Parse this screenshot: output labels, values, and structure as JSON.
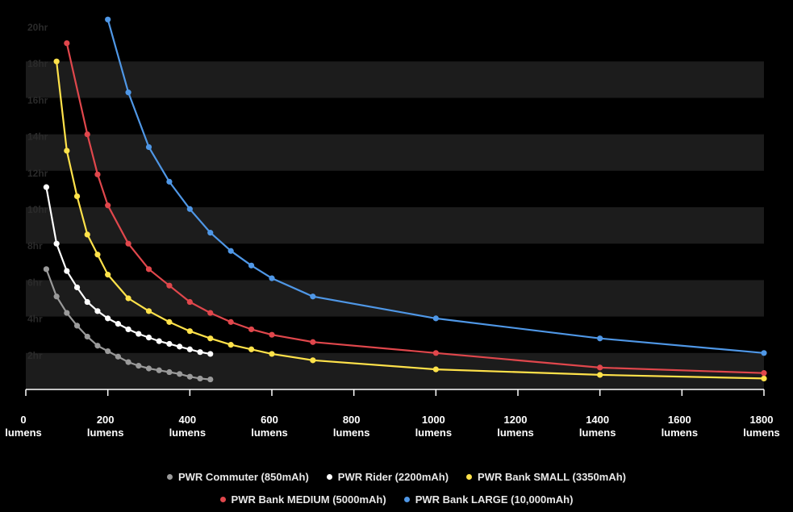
{
  "chart_data": {
    "type": "line",
    "x_unit": "lumens",
    "y_unit": "hr",
    "xlim": [
      0,
      1800
    ],
    "ylim": [
      0,
      21
    ],
    "x_ticks": [
      "0",
      "200",
      "400",
      "600",
      "800",
      "1000",
      "1200",
      "1400",
      "1600",
      "1800"
    ],
    "y_ticks": [
      "2hr",
      "4hr",
      "6hr",
      "8hr",
      "10hr",
      "12hr",
      "14hr",
      "16hr",
      "18hr",
      "20hr"
    ],
    "grid": "alternating horizontal bands",
    "legend_position": "bottom",
    "series": [
      {
        "name": "PWR Commuter (850mAh)",
        "color": "#9a9a9a",
        "points": [
          [
            50,
            6.6
          ],
          [
            75,
            5.1
          ],
          [
            100,
            4.2
          ],
          [
            125,
            3.5
          ],
          [
            150,
            2.9
          ],
          [
            175,
            2.4
          ],
          [
            200,
            2.1
          ],
          [
            225,
            1.8
          ],
          [
            250,
            1.5
          ],
          [
            275,
            1.3
          ],
          [
            300,
            1.15
          ],
          [
            325,
            1.05
          ],
          [
            350,
            0.95
          ],
          [
            375,
            0.85
          ],
          [
            400,
            0.7
          ],
          [
            425,
            0.6
          ],
          [
            450,
            0.55
          ]
        ]
      },
      {
        "name": "PWR Rider (2200mAh)",
        "color": "#ffffff",
        "points": [
          [
            50,
            11.1
          ],
          [
            75,
            8.0
          ],
          [
            100,
            6.5
          ],
          [
            125,
            5.6
          ],
          [
            150,
            4.8
          ],
          [
            175,
            4.3
          ],
          [
            200,
            3.9
          ],
          [
            225,
            3.6
          ],
          [
            250,
            3.3
          ],
          [
            275,
            3.05
          ],
          [
            300,
            2.85
          ],
          [
            325,
            2.65
          ],
          [
            350,
            2.5
          ],
          [
            375,
            2.35
          ],
          [
            400,
            2.2
          ],
          [
            425,
            2.05
          ],
          [
            450,
            1.95
          ]
        ]
      },
      {
        "name": "PWR Bank SMALL (3350mAh)",
        "color": "#ffe24a",
        "points": [
          [
            75,
            18.0
          ],
          [
            100,
            13.1
          ],
          [
            125,
            10.6
          ],
          [
            150,
            8.5
          ],
          [
            175,
            7.4
          ],
          [
            200,
            6.3
          ],
          [
            250,
            5.0
          ],
          [
            300,
            4.3
          ],
          [
            350,
            3.7
          ],
          [
            400,
            3.2
          ],
          [
            450,
            2.8
          ],
          [
            500,
            2.45
          ],
          [
            550,
            2.2
          ],
          [
            600,
            1.95
          ],
          [
            700,
            1.6
          ],
          [
            1000,
            1.1
          ],
          [
            1400,
            0.8
          ],
          [
            1800,
            0.6
          ]
        ]
      },
      {
        "name": "PWR Bank MEDIUM (5000mAh)",
        "color": "#e0474c",
        "points": [
          [
            100,
            19.0
          ],
          [
            150,
            14.0
          ],
          [
            175,
            11.8
          ],
          [
            200,
            10.1
          ],
          [
            250,
            8.0
          ],
          [
            300,
            6.6
          ],
          [
            350,
            5.7
          ],
          [
            400,
            4.8
          ],
          [
            450,
            4.2
          ],
          [
            500,
            3.7
          ],
          [
            550,
            3.3
          ],
          [
            600,
            3.0
          ],
          [
            700,
            2.6
          ],
          [
            1000,
            2.0
          ],
          [
            1400,
            1.2
          ],
          [
            1800,
            0.9
          ]
        ]
      },
      {
        "name": "PWR Bank LARGE (10,000mAh)",
        "color": "#4f97e6",
        "points": [
          [
            200,
            20.3
          ],
          [
            250,
            16.3
          ],
          [
            300,
            13.3
          ],
          [
            350,
            11.4
          ],
          [
            400,
            9.9
          ],
          [
            450,
            8.6
          ],
          [
            500,
            7.6
          ],
          [
            550,
            6.8
          ],
          [
            600,
            6.1
          ],
          [
            700,
            5.1
          ],
          [
            1000,
            3.9
          ],
          [
            1400,
            2.8
          ],
          [
            1800,
            2.0
          ]
        ]
      }
    ]
  },
  "legend": {
    "row1": [
      "PWR Commuter (850mAh)",
      "PWR Rider (2200mAh)",
      "PWR Bank SMALL (3350mAh)"
    ],
    "row2": [
      "PWR Bank MEDIUM (5000mAh)",
      "PWR Bank LARGE (10,000mAh)"
    ]
  }
}
